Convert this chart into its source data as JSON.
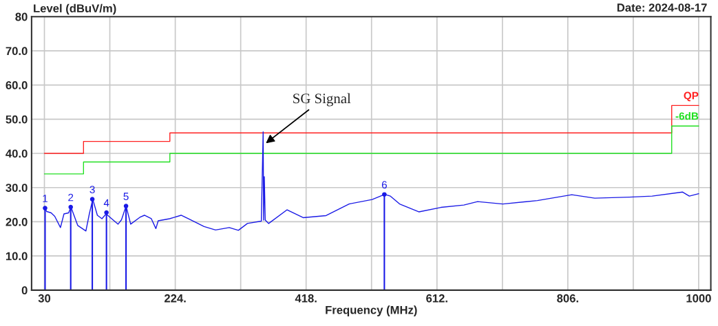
{
  "chart_data": {
    "type": "line",
    "ylabel": "Level (dBuV/m)",
    "xlabel": "Frequency (MHz)",
    "xlim": [
      11,
      1018
    ],
    "ylim": [
      0,
      80
    ],
    "xticks": [
      30,
      {
        "value": 127,
        "label": null
      },
      {
        "value": 224,
        "label": "224."
      },
      {
        "value": 321,
        "label": null
      },
      {
        "value": 418,
        "label": "418."
      },
      {
        "value": 515,
        "label": null
      },
      {
        "value": 612,
        "label": "612."
      },
      {
        "value": 709,
        "label": null
      },
      {
        "value": 806,
        "label": "806."
      },
      {
        "value": 903,
        "label": null
      },
      1000
    ],
    "yticks": [
      0,
      {
        "value": 10,
        "label": "10.0"
      },
      {
        "value": 20,
        "label": "20.0"
      },
      {
        "value": 30,
        "label": "30.0"
      },
      {
        "value": 40,
        "label": "40.0"
      },
      {
        "value": 50,
        "label": "50.0"
      },
      {
        "value": 60,
        "label": "60.0"
      },
      {
        "value": 70,
        "label": "70.0"
      },
      80
    ],
    "grid": true,
    "legend": false,
    "series": [
      {
        "type": "step",
        "name": "QP",
        "color": "#ff2020",
        "x": [
          30,
          88,
          216,
          960,
          1000
        ],
        "values": [
          40,
          43.5,
          46,
          54,
          54
        ]
      },
      {
        "type": "step",
        "name": "-6dB",
        "color": "#20e020",
        "x": [
          30,
          88,
          216,
          960,
          1000
        ],
        "values": [
          34,
          37.5,
          40,
          48,
          48
        ]
      },
      {
        "color": "#1a1ae6",
        "x": [
          30.7,
          33.4,
          40,
          45.3,
          53.8,
          59,
          65.9,
          69.3,
          79.5,
          91.5,
          96.6,
          101.7,
          108.5,
          115.3,
          121.5,
          127.3,
          139.2,
          144.3,
          151.1,
          157.9,
          171.5,
          178.3,
          188.5,
          195.3,
          198.7,
          215.7,
          232.7,
          246.3,
          266.7,
          283.7,
          304,
          317.6,
          331,
          351.6,
          354.3,
          355,
          356,
          357.4,
          362.5,
          389.8,
          413.6,
          447.6,
          481.7,
          515.8,
          534.5,
          543,
          556.6,
          585.5,
          617.8,
          651.8,
          672.2,
          709.7,
          760.8,
          811.9,
          845.9,
          897,
          931,
          975.9,
          986.1,
          1000
        ],
        "values": [
          24.0,
          23.0,
          22.6,
          21.6,
          18.3,
          22.3,
          22.6,
          24.3,
          18.9,
          17.3,
          22.3,
          26.6,
          21.9,
          20.9,
          22.3,
          21.3,
          19.3,
          20.6,
          24.6,
          19.3,
          21.3,
          21.9,
          20.9,
          18.0,
          20.3,
          20.9,
          21.9,
          20.6,
          18.6,
          17.6,
          18.3,
          17.5,
          19.5,
          20.2,
          46.3,
          20.5,
          33.2,
          20.5,
          19.5,
          23.5,
          21.2,
          21.8,
          25.2,
          26.5,
          28.0,
          27.5,
          25.2,
          22.9,
          24.2,
          24.9,
          25.9,
          25.2,
          26.2,
          27.9,
          26.9,
          27.2,
          27.5,
          28.7,
          27.5,
          28.2
        ]
      },
      {
        "type": "lollipop",
        "color": "#1a1ae6",
        "x": [
          31,
          69,
          101,
          122,
          151,
          534
        ],
        "values": [
          24.0,
          24.3,
          26.6,
          22.7,
          24.6,
          28.0
        ],
        "marker": "circle"
      }
    ],
    "annotations": [
      "Date: 2024-08-17",
      {
        "text": "1",
        "x": 31,
        "y": 24.0
      },
      {
        "text": "2",
        "x": 69,
        "y": 24.3
      },
      {
        "text": "3",
        "x": 101,
        "y": 26.6
      },
      {
        "text": "4",
        "x": 122,
        "y": 22.7
      },
      {
        "text": "5",
        "x": 151,
        "y": 24.6
      },
      {
        "text": "6",
        "x": 534,
        "y": 28.0
      },
      {
        "text": "SG Signal",
        "x": 356,
        "y": 42.6
      }
    ]
  }
}
